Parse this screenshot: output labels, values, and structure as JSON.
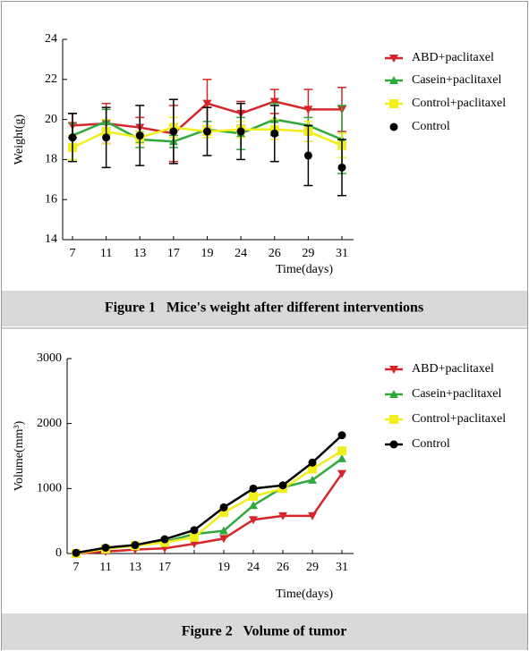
{
  "chart_data": [
    {
      "type": "line",
      "caption": "Figure 1   Mice's weight after different interventions",
      "ylabel": "Weight(g)",
      "xlabel": "Time(days)",
      "categories": [
        "7",
        "11",
        "13",
        "17",
        "19",
        "24",
        "26",
        "29",
        "31"
      ],
      "ylim": [
        14,
        24
      ],
      "yticks": [
        14,
        16,
        18,
        20,
        22,
        24
      ],
      "series": [
        {
          "name": "ABD+paclitaxel",
          "color": "#d6262b",
          "marker": "triangle-down",
          "line": true,
          "values": [
            19.7,
            19.8,
            19.6,
            19.3,
            20.8,
            20.3,
            20.9,
            20.5,
            20.5
          ],
          "errors": [
            0.6,
            1.0,
            0.5,
            1.4,
            1.2,
            0.6,
            0.6,
            1.0,
            1.1
          ]
        },
        {
          "name": "Casein+paclitaxel",
          "color": "#2fa83c",
          "marker": "triangle-up",
          "line": true,
          "values": [
            19.2,
            19.9,
            19.0,
            18.9,
            19.5,
            19.3,
            20.0,
            19.7,
            19.0
          ],
          "errors": [
            0.6,
            0.6,
            0.4,
            0.3,
            0.4,
            0.8,
            0.8,
            0.4,
            1.7
          ]
        },
        {
          "name": "Control+paclitaxel",
          "color": "#f2ee1c",
          "marker": "square",
          "line": true,
          "values": [
            18.6,
            19.4,
            19.1,
            19.6,
            19.4,
            19.5,
            19.5,
            19.4,
            18.7
          ],
          "errors": [
            0.6,
            0.6,
            0.3,
            0.5,
            0.3,
            0.4,
            0.5,
            0.5,
            0.6
          ]
        },
        {
          "name": "Control",
          "color": "#000000",
          "marker": "circle",
          "line": false,
          "values": [
            19.1,
            19.1,
            19.2,
            19.4,
            19.4,
            19.4,
            19.3,
            18.2,
            17.6
          ],
          "errors": [
            1.2,
            1.5,
            1.5,
            1.6,
            1.2,
            1.4,
            1.4,
            1.5,
            1.4
          ]
        }
      ]
    },
    {
      "type": "line",
      "caption": "Figure 2   Volume of tumor",
      "ylabel": "Volume(mm³)",
      "xlabel": "Time(days)",
      "categories": [
        "7",
        "11",
        "13",
        "17",
        null,
        "19",
        "24",
        "26",
        "29",
        "31"
      ],
      "ylim": [
        0,
        3000
      ],
      "yticks": [
        0,
        1000,
        2000,
        3000
      ],
      "series": [
        {
          "name": "ABD+paclitaxel",
          "color": "#d6262b",
          "marker": "triangle-down",
          "line": true,
          "values": [
            0,
            30,
            60,
            80,
            150,
            230,
            520,
            580,
            580,
            1230
          ]
        },
        {
          "name": "Casein+paclitaxel",
          "color": "#2fa83c",
          "marker": "triangle-up",
          "line": true,
          "values": [
            0,
            80,
            130,
            180,
            300,
            350,
            740,
            1020,
            1130,
            1460
          ]
        },
        {
          "name": "Control+paclitaxel",
          "color": "#f2ee1c",
          "marker": "square",
          "line": true,
          "values": [
            0,
            70,
            120,
            170,
            250,
            630,
            880,
            1000,
            1300,
            1580
          ]
        },
        {
          "name": "Control",
          "color": "#000000",
          "marker": "circle",
          "line": true,
          "values": [
            10,
            90,
            130,
            220,
            360,
            710,
            1000,
            1050,
            1400,
            1820
          ]
        }
      ]
    }
  ]
}
